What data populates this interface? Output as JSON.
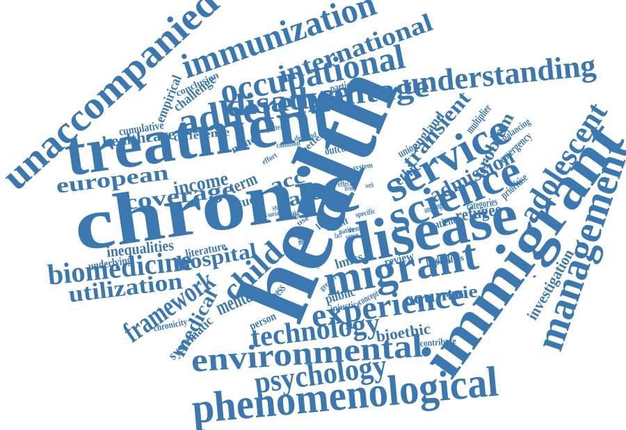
{
  "title": "Word cloud",
  "color": "#3b78b0",
  "words": [
    {
      "text": "unaccompanied"
    },
    {
      "text": "immunization"
    },
    {
      "text": "international"
    },
    {
      "text": "occupational"
    },
    {
      "text": "understanding"
    },
    {
      "text": "disadvantage"
    },
    {
      "text": "adherence"
    },
    {
      "text": "treatment"
    },
    {
      "text": "health"
    },
    {
      "text": "chronic"
    },
    {
      "text": "disease"
    },
    {
      "text": "immigrant"
    },
    {
      "text": "management"
    },
    {
      "text": "adolescent"
    },
    {
      "text": "service"
    },
    {
      "text": "science"
    },
    {
      "text": "migrant"
    },
    {
      "text": "experience"
    },
    {
      "text": "technology"
    },
    {
      "text": "environmental"
    },
    {
      "text": "psychology"
    },
    {
      "text": "phenomenological"
    },
    {
      "text": "biomedicine"
    },
    {
      "text": "utilization"
    },
    {
      "text": "framework"
    },
    {
      "text": "hospital"
    },
    {
      "text": "coverage"
    },
    {
      "text": "european"
    },
    {
      "text": "income"
    },
    {
      "text": "term"
    },
    {
      "text": "acc"
    },
    {
      "text": "care"
    },
    {
      "text": "study"
    },
    {
      "text": "healthcare"
    },
    {
      "text": "empirical"
    },
    {
      "text": "challenge"
    },
    {
      "text": "conclusion"
    },
    {
      "text": "cumulative"
    },
    {
      "text": "difference"
    },
    {
      "text": "minor"
    },
    {
      "text": "transient"
    },
    {
      "text": "ethic"
    },
    {
      "text": "union"
    },
    {
      "text": "england"
    },
    {
      "text": "multiplier"
    },
    {
      "text": "problem"
    },
    {
      "text": "balancing"
    },
    {
      "text": "emergency"
    },
    {
      "text": "admission"
    },
    {
      "text": "prioritise"
    },
    {
      "text": "refugee"
    },
    {
      "text": "patient"
    },
    {
      "text": "categories"
    },
    {
      "text": "ongoing"
    },
    {
      "text": "inequalities"
    },
    {
      "text": "underlying"
    },
    {
      "text": "literature"
    },
    {
      "text": "child"
    },
    {
      "text": "mental"
    },
    {
      "text": "medical"
    },
    {
      "text": "systematic"
    },
    {
      "text": "chronicity"
    },
    {
      "text": "illness"
    },
    {
      "text": "person"
    },
    {
      "text": "public"
    },
    {
      "text": "injustice"
    },
    {
      "text": "concept"
    },
    {
      "text": "countrie"
    },
    {
      "text": "bioethic"
    },
    {
      "text": "contribute"
    },
    {
      "text": "lmics"
    },
    {
      "text": "review"
    },
    {
      "text": "finding"
    },
    {
      "text": "specifies"
    },
    {
      "text": "investigation"
    },
    {
      "text": "outcome"
    },
    {
      "text": "system"
    },
    {
      "text": "demand"
    },
    {
      "text": "common"
    },
    {
      "text": "better"
    },
    {
      "text": "effort"
    },
    {
      "text": "pattern"
    },
    {
      "text": "particular"
    },
    {
      "text": "life"
    },
    {
      "text": "self"
    },
    {
      "text": "risk"
    },
    {
      "text": "native"
    },
    {
      "text": "theme"
    },
    {
      "text": "sense"
    },
    {
      "text": "specific"
    },
    {
      "text": "shared"
    },
    {
      "text": "greater"
    },
    {
      "text": "lived"
    },
    {
      "text": "most"
    },
    {
      "text": "social"
    },
    {
      "text": "studies"
    },
    {
      "text": "paper"
    },
    {
      "text": "thesis"
    },
    {
      "text": "effect"
    },
    {
      "text": "living"
    },
    {
      "text": "work"
    },
    {
      "text": "make"
    },
    {
      "text": "high"
    },
    {
      "text": "use"
    },
    {
      "text": "fact"
    },
    {
      "text": "·"
    },
    {
      "text": "·"
    }
  ]
}
